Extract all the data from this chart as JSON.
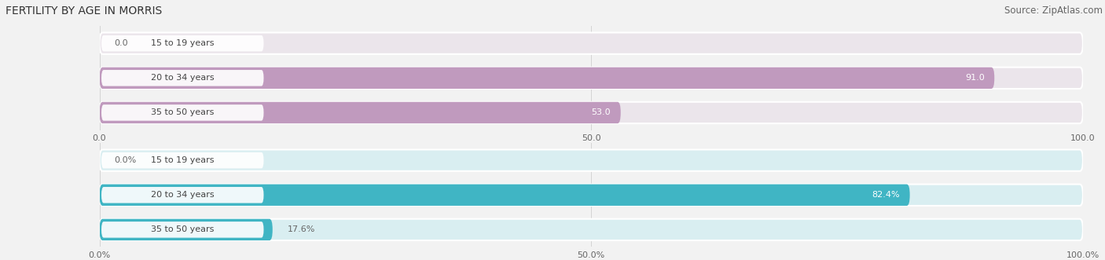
{
  "title": "FERTILITY BY AGE IN MORRIS",
  "source": "Source: ZipAtlas.com",
  "top_chart": {
    "categories": [
      "15 to 19 years",
      "20 to 34 years",
      "35 to 50 years"
    ],
    "values": [
      0.0,
      91.0,
      53.0
    ],
    "max_value": 100.0,
    "bar_color": "#c09abe",
    "bar_bg_color": "#ebe5eb",
    "x_ticks": [
      0.0,
      50.0,
      100.0
    ],
    "x_tick_labels": [
      "0.0",
      "50.0",
      "100.0"
    ]
  },
  "bottom_chart": {
    "categories": [
      "15 to 19 years",
      "20 to 34 years",
      "35 to 50 years"
    ],
    "values": [
      0.0,
      82.4,
      17.6
    ],
    "max_value": 100.0,
    "bar_color": "#40b5c4",
    "bar_bg_color": "#d9eef1",
    "x_ticks": [
      0.0,
      50.0,
      100.0
    ],
    "x_tick_labels": [
      "0.0%",
      "50.0%",
      "100.0%"
    ]
  },
  "fig_bg_color": "#f2f2f2",
  "label_bg_color": "#ffffff",
  "label_text_color": "#444444",
  "value_color_inside": "#ffffff",
  "value_color_outside": "#666666",
  "title_fontsize": 10,
  "source_fontsize": 8.5,
  "label_fontsize": 8,
  "value_fontsize": 8,
  "tick_fontsize": 8
}
